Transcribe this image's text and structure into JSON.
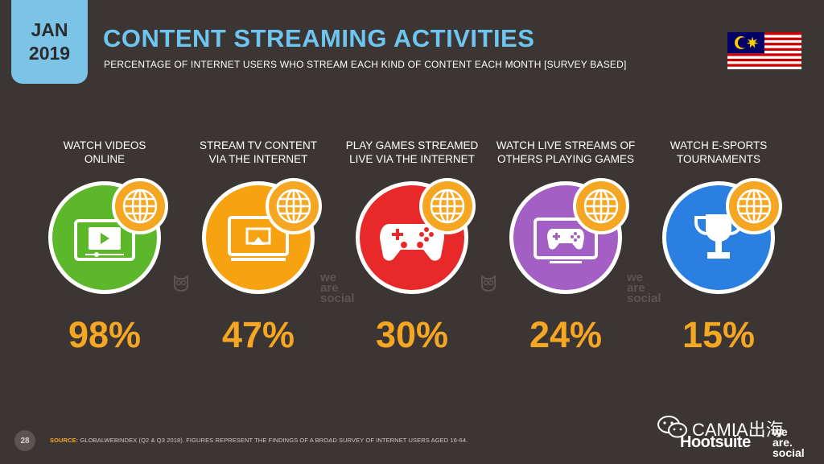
{
  "header": {
    "date_month": "JAN",
    "date_year": "2019",
    "title": "CONTENT STREAMING ACTIVITIES",
    "subtitle": "PERCENTAGE OF INTERNET USERS WHO STREAM EACH KIND OF CONTENT EACH MONTH [SURVEY BASED]"
  },
  "colors": {
    "background": "#3b3634",
    "accent_orange": "#f5a623",
    "title_blue": "#6ec6f0",
    "green": "#5cb82a",
    "orange": "#f7a211",
    "red": "#e8292a",
    "purple": "#a45fc4",
    "blue": "#2b7fe0"
  },
  "activities": [
    {
      "label_line1": "WATCH VIDEOS",
      "label_line2": "ONLINE",
      "value": "98%",
      "icon": "video-player-icon"
    },
    {
      "label_line1": "STREAM TV CONTENT",
      "label_line2": "VIA THE INTERNET",
      "value": "47%",
      "icon": "tv-stream-icon"
    },
    {
      "label_line1": "PLAY GAMES STREAMED",
      "label_line2": "LIVE VIA THE INTERNET",
      "value": "30%",
      "icon": "gamepad-icon"
    },
    {
      "label_line1": "WATCH LIVE STREAMS OF",
      "label_line2": "OTHERS PLAYING GAMES",
      "value": "24%",
      "icon": "gamepad-screen-icon"
    },
    {
      "label_line1": "WATCH E-SPORTS",
      "label_line2": "TOURNAMENTS",
      "value": "15%",
      "icon": "trophy-icon"
    }
  ],
  "watermark": {
    "line1": "we",
    "line2": "are",
    "line3": "social"
  },
  "footer": {
    "page_number": "28",
    "source_label": "SOURCE:",
    "source_text": "GLOBALWEBINDEX (Q2 & Q3 2018). FIGURES REPRESENT THE FINDINGS OF A BROAD SURVEY OF INTERNET USERS AGED 16-64.",
    "camia": "CAMIA出海",
    "hootsuite": "Hootsuite",
    "brand_we": "we",
    "brand_are": "are.",
    "brand_social": "social"
  }
}
